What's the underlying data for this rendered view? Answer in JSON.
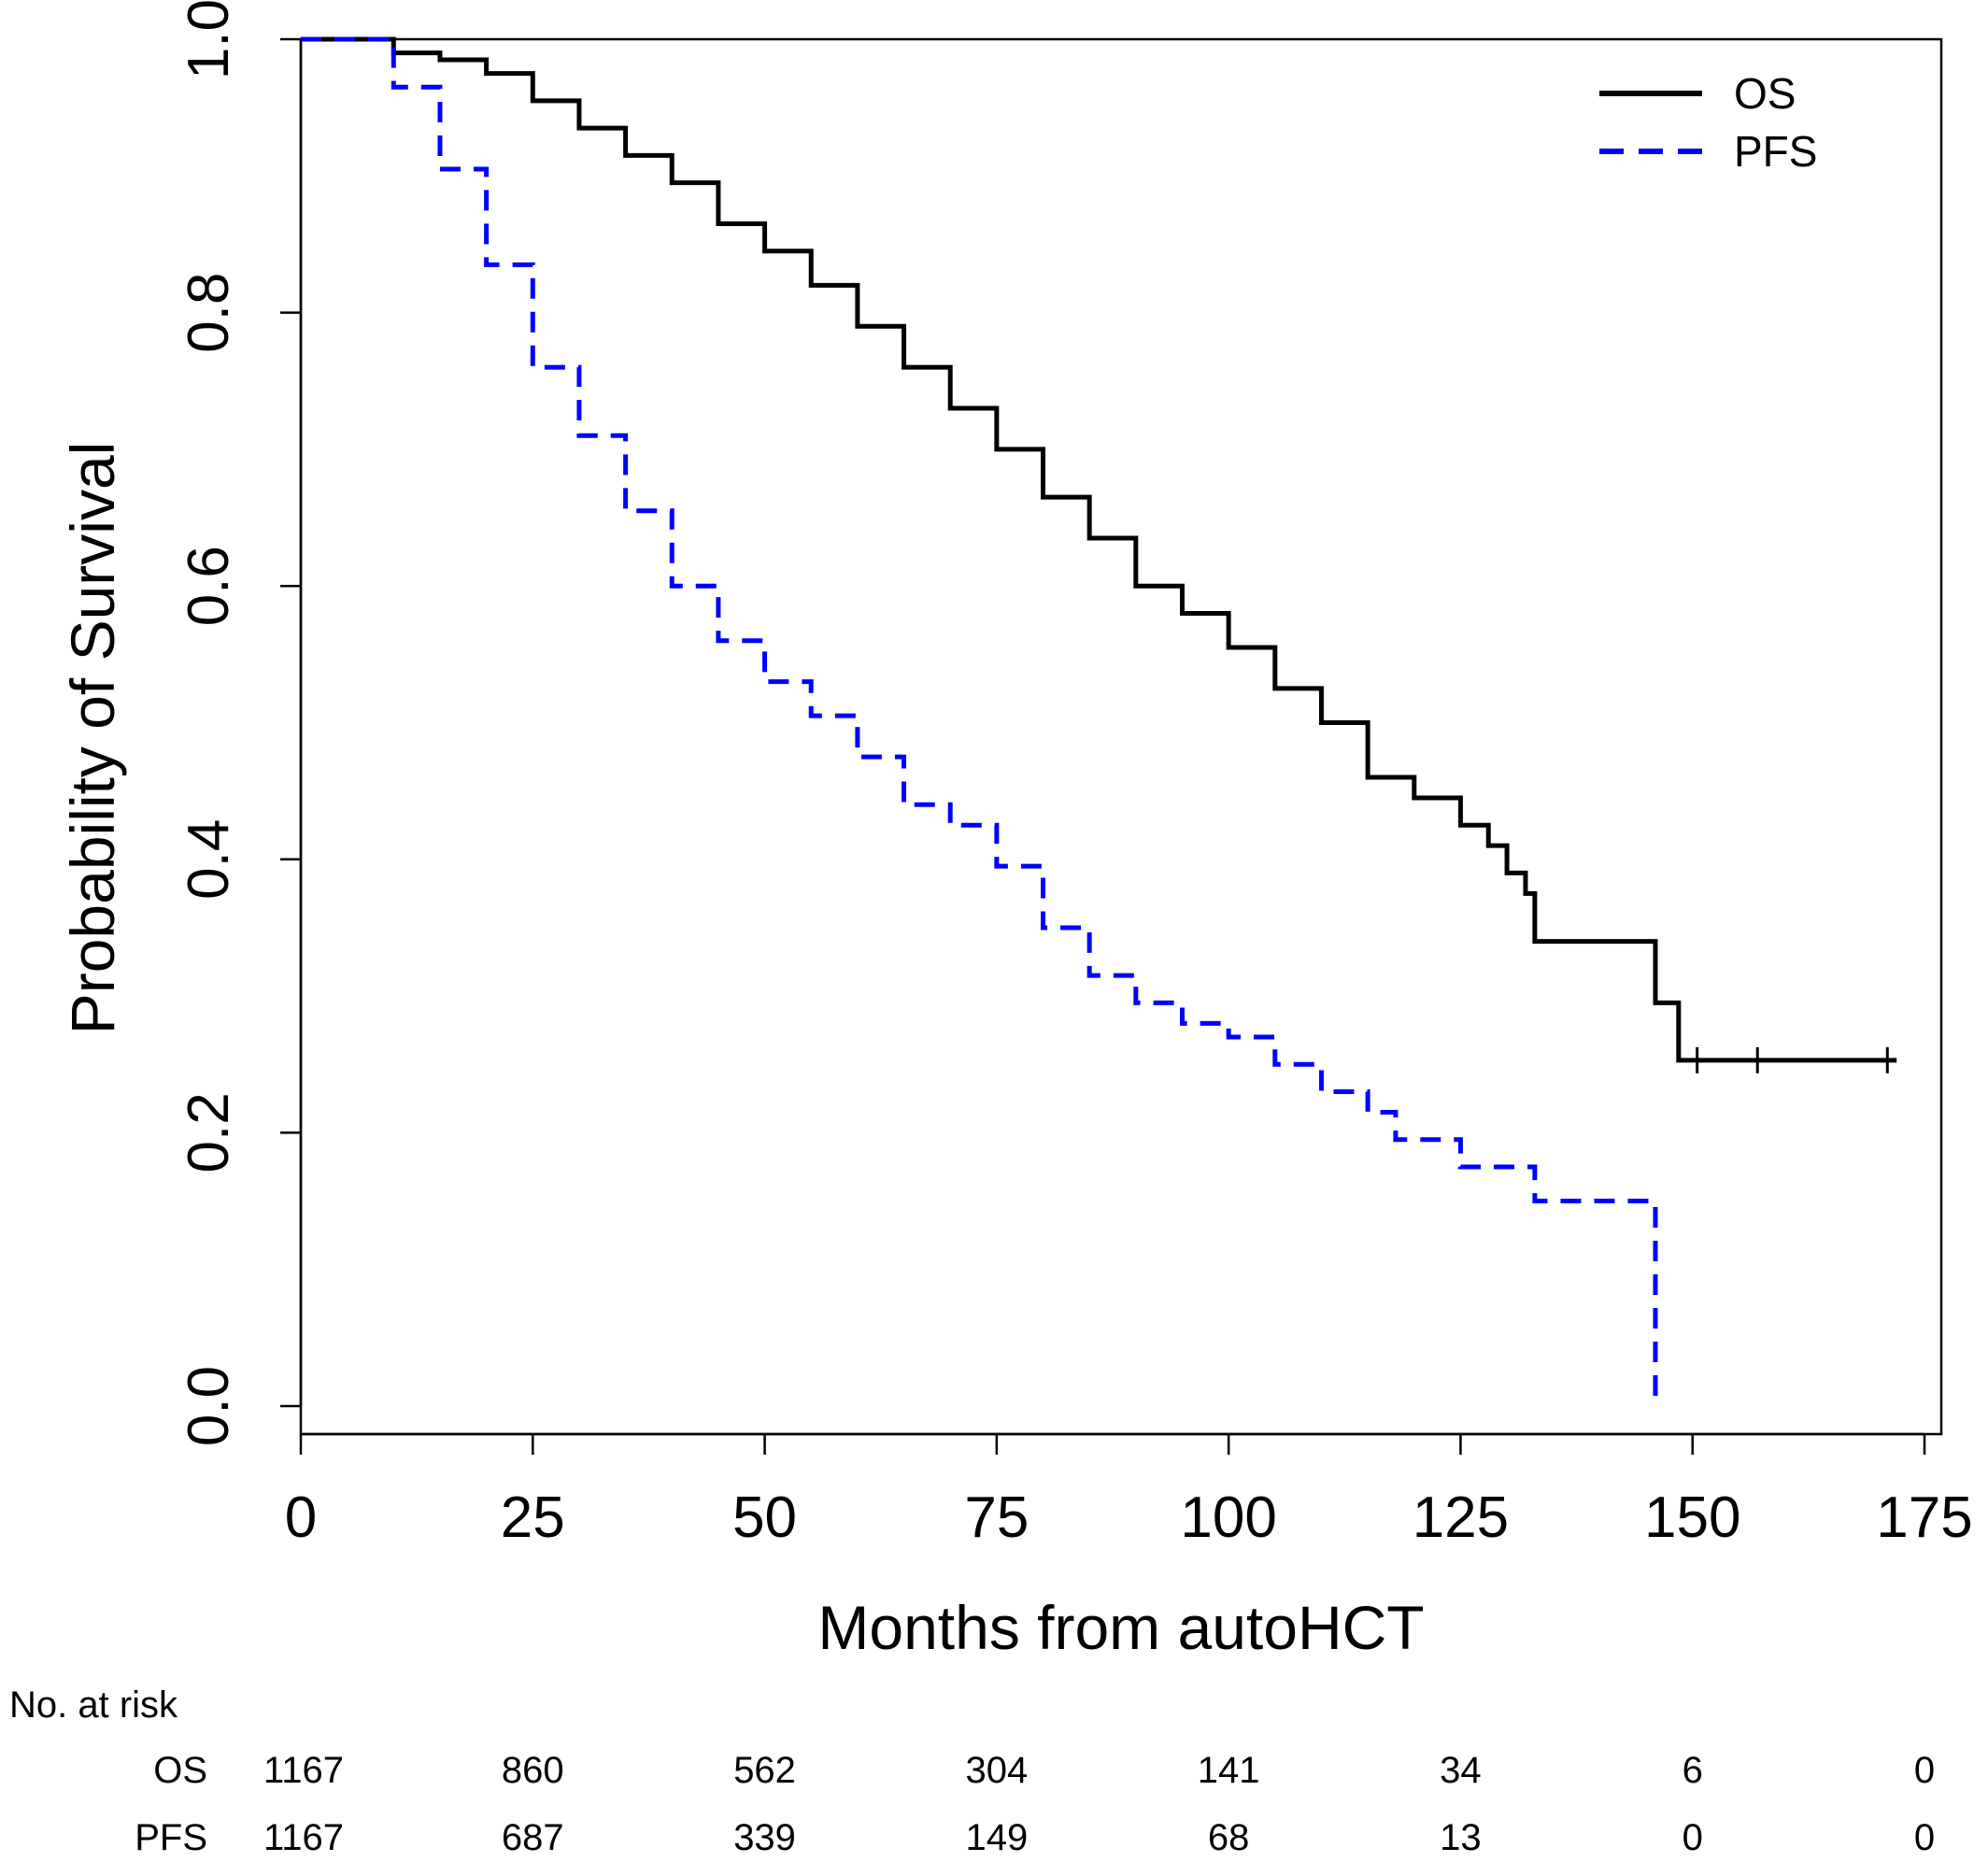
{
  "chart_data": {
    "type": "line",
    "step": true,
    "title": "",
    "xlabel": "Months from autoHCT",
    "ylabel": "Probability of Survival",
    "xlim": [
      0,
      175
    ],
    "ylim": [
      0,
      1
    ],
    "xticks": [
      "0",
      "25",
      "50",
      "75",
      "100",
      "125",
      "150",
      "175"
    ],
    "yticks": [
      "0.0",
      "0.2",
      "0.4",
      "0.6",
      "0.8",
      "1.0"
    ],
    "legend": {
      "position": "top-right",
      "entries": [
        {
          "label": "OS",
          "color": "#000000",
          "style": "solid"
        },
        {
          "label": "PFS",
          "color": "#0000ff",
          "style": "dashed"
        }
      ]
    },
    "series": [
      {
        "name": "OS",
        "color": "#000000",
        "points": [
          [
            0,
            1.0
          ],
          [
            5,
            1.0
          ],
          [
            10,
            0.99
          ],
          [
            15,
            0.985
          ],
          [
            20,
            0.975
          ],
          [
            25,
            0.955
          ],
          [
            30,
            0.935
          ],
          [
            35,
            0.915
          ],
          [
            40,
            0.895
          ],
          [
            45,
            0.865
          ],
          [
            50,
            0.845
          ],
          [
            55,
            0.82
          ],
          [
            60,
            0.79
          ],
          [
            65,
            0.76
          ],
          [
            70,
            0.73
          ],
          [
            75,
            0.7
          ],
          [
            80,
            0.665
          ],
          [
            85,
            0.635
          ],
          [
            90,
            0.6
          ],
          [
            95,
            0.58
          ],
          [
            100,
            0.555
          ],
          [
            105,
            0.525
          ],
          [
            110,
            0.5
          ],
          [
            115,
            0.46
          ],
          [
            120,
            0.445
          ],
          [
            125,
            0.425
          ],
          [
            128,
            0.41
          ],
          [
            130,
            0.39
          ],
          [
            132,
            0.375
          ],
          [
            133,
            0.34
          ],
          [
            146,
            0.34
          ],
          [
            146,
            0.295
          ],
          [
            148.5,
            0.295
          ],
          [
            148.5,
            0.253
          ],
          [
            172,
            0.253
          ]
        ],
        "censor_marks": [
          150.5,
          157,
          171
        ]
      },
      {
        "name": "PFS",
        "color": "#0000ff",
        "points": [
          [
            0,
            1.0
          ],
          [
            5,
            1.0
          ],
          [
            10,
            0.965
          ],
          [
            15,
            0.905
          ],
          [
            20,
            0.835
          ],
          [
            25,
            0.76
          ],
          [
            30,
            0.71
          ],
          [
            35,
            0.655
          ],
          [
            40,
            0.6
          ],
          [
            45,
            0.56
          ],
          [
            50,
            0.53
          ],
          [
            55,
            0.505
          ],
          [
            60,
            0.475
          ],
          [
            65,
            0.44
          ],
          [
            70,
            0.425
          ],
          [
            75,
            0.395
          ],
          [
            80,
            0.35
          ],
          [
            85,
            0.315
          ],
          [
            90,
            0.295
          ],
          [
            95,
            0.28
          ],
          [
            100,
            0.27
          ],
          [
            105,
            0.25
          ],
          [
            110,
            0.23
          ],
          [
            115,
            0.215
          ],
          [
            118,
            0.195
          ],
          [
            124,
            0.195
          ],
          [
            125,
            0.175
          ],
          [
            130,
            0.175
          ],
          [
            133,
            0.15
          ],
          [
            146,
            0.15
          ],
          [
            146,
            0.0
          ]
        ]
      }
    ],
    "risk_table": {
      "title": "No. at risk",
      "times": [
        0,
        25,
        50,
        75,
        100,
        125,
        150,
        175
      ],
      "rows": [
        {
          "label": "OS",
          "values": [
            "1167",
            "860",
            "562",
            "304",
            "141",
            "34",
            "6",
            "0"
          ]
        },
        {
          "label": "PFS",
          "values": [
            "1167",
            "687",
            "339",
            "149",
            "68",
            "13",
            "0",
            "0"
          ]
        }
      ]
    }
  }
}
